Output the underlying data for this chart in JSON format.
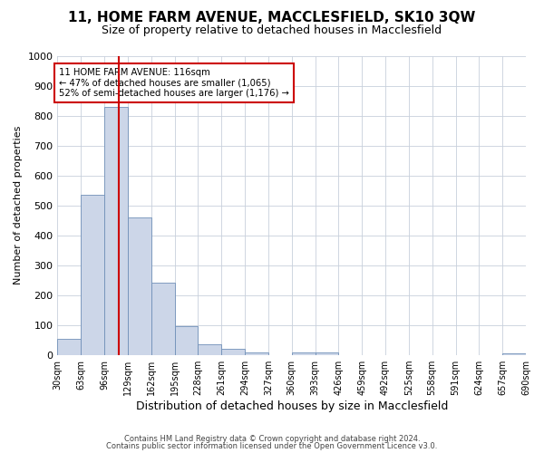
{
  "title": "11, HOME FARM AVENUE, MACCLESFIELD, SK10 3QW",
  "subtitle": "Size of property relative to detached houses in Macclesfield",
  "xlabel": "Distribution of detached houses by size in Macclesfield",
  "ylabel": "Number of detached properties",
  "bin_edges": [
    30,
    63,
    96,
    129,
    162,
    195,
    228,
    261,
    294,
    327,
    360,
    393,
    426,
    459,
    492,
    525,
    558,
    591,
    624,
    657,
    690
  ],
  "bar_heights": [
    55,
    537,
    830,
    459,
    243,
    96,
    37,
    22,
    10,
    0,
    10,
    10,
    0,
    0,
    0,
    0,
    0,
    0,
    0,
    5
  ],
  "bar_facecolor": "#ccd6e8",
  "bar_edgecolor": "#7090b8",
  "vline_x": 116,
  "vline_color": "#cc0000",
  "annotation_text": "11 HOME FARM AVENUE: 116sqm\n← 47% of detached houses are smaller (1,065)\n52% of semi-detached houses are larger (1,176) →",
  "annotation_bbox_edgecolor": "#cc0000",
  "annotation_bbox_facecolor": "#ffffff",
  "ylim": [
    0,
    1000
  ],
  "yticks": [
    0,
    100,
    200,
    300,
    400,
    500,
    600,
    700,
    800,
    900,
    1000
  ],
  "footer1": "Contains HM Land Registry data © Crown copyright and database right 2024.",
  "footer2": "Contains public sector information licensed under the Open Government Licence v3.0.",
  "background_color": "#ffffff",
  "grid_color": "#c8d0dc",
  "title_fontsize": 11,
  "subtitle_fontsize": 9,
  "tick_labels": [
    "30sqm",
    "63sqm",
    "96sqm",
    "129sqm",
    "162sqm",
    "195sqm",
    "228sqm",
    "261sqm",
    "294sqm",
    "327sqm",
    "360sqm",
    "393sqm",
    "426sqm",
    "459sqm",
    "492sqm",
    "525sqm",
    "558sqm",
    "591sqm",
    "624sqm",
    "657sqm",
    "690sqm"
  ]
}
